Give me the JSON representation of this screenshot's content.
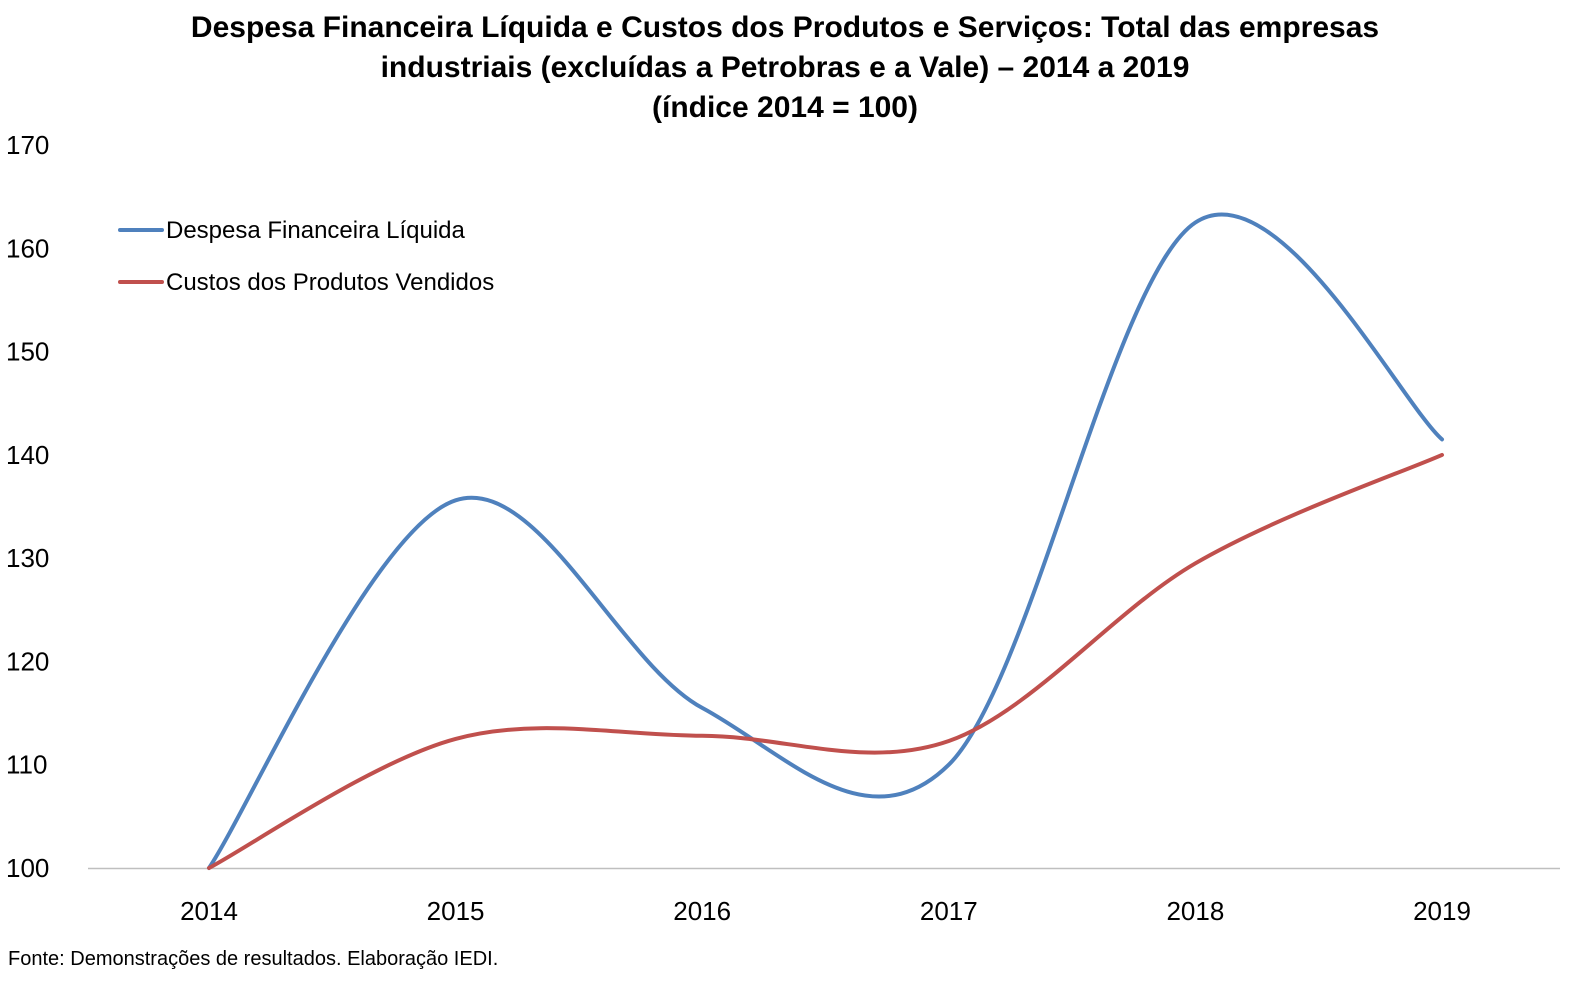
{
  "chart_data": {
    "type": "line",
    "title_lines": [
      "Despesa Financeira Líquida e Custos dos Produtos e Serviços: Total das empresas",
      "industriais (excluídas a Petrobras e a Vale) – 2014 a 2019",
      "(índice 2014 = 100)"
    ],
    "categories": [
      "2014",
      "2015",
      "2016",
      "2017",
      "2018",
      "2019"
    ],
    "series": [
      {
        "name": "Despesa Financeira Líquida",
        "color": "#4F81BD",
        "values": [
          100,
          135.6,
          115.5,
          110.0,
          162.5,
          141.5
        ]
      },
      {
        "name": "Custos dos Produtos Vendidos",
        "color": "#C0504D",
        "values": [
          100,
          112.5,
          112.8,
          112.3,
          129.5,
          140.0
        ]
      }
    ],
    "ylim": [
      100,
      170
    ],
    "yticks": [
      "100",
      "110",
      "120",
      "130",
      "140",
      "150",
      "160",
      "170"
    ],
    "grid": false,
    "legend_position": "top-left",
    "smooth": true
  },
  "source_text": "Fonte: Demonstrações de resultados. Elaboração IEDI."
}
